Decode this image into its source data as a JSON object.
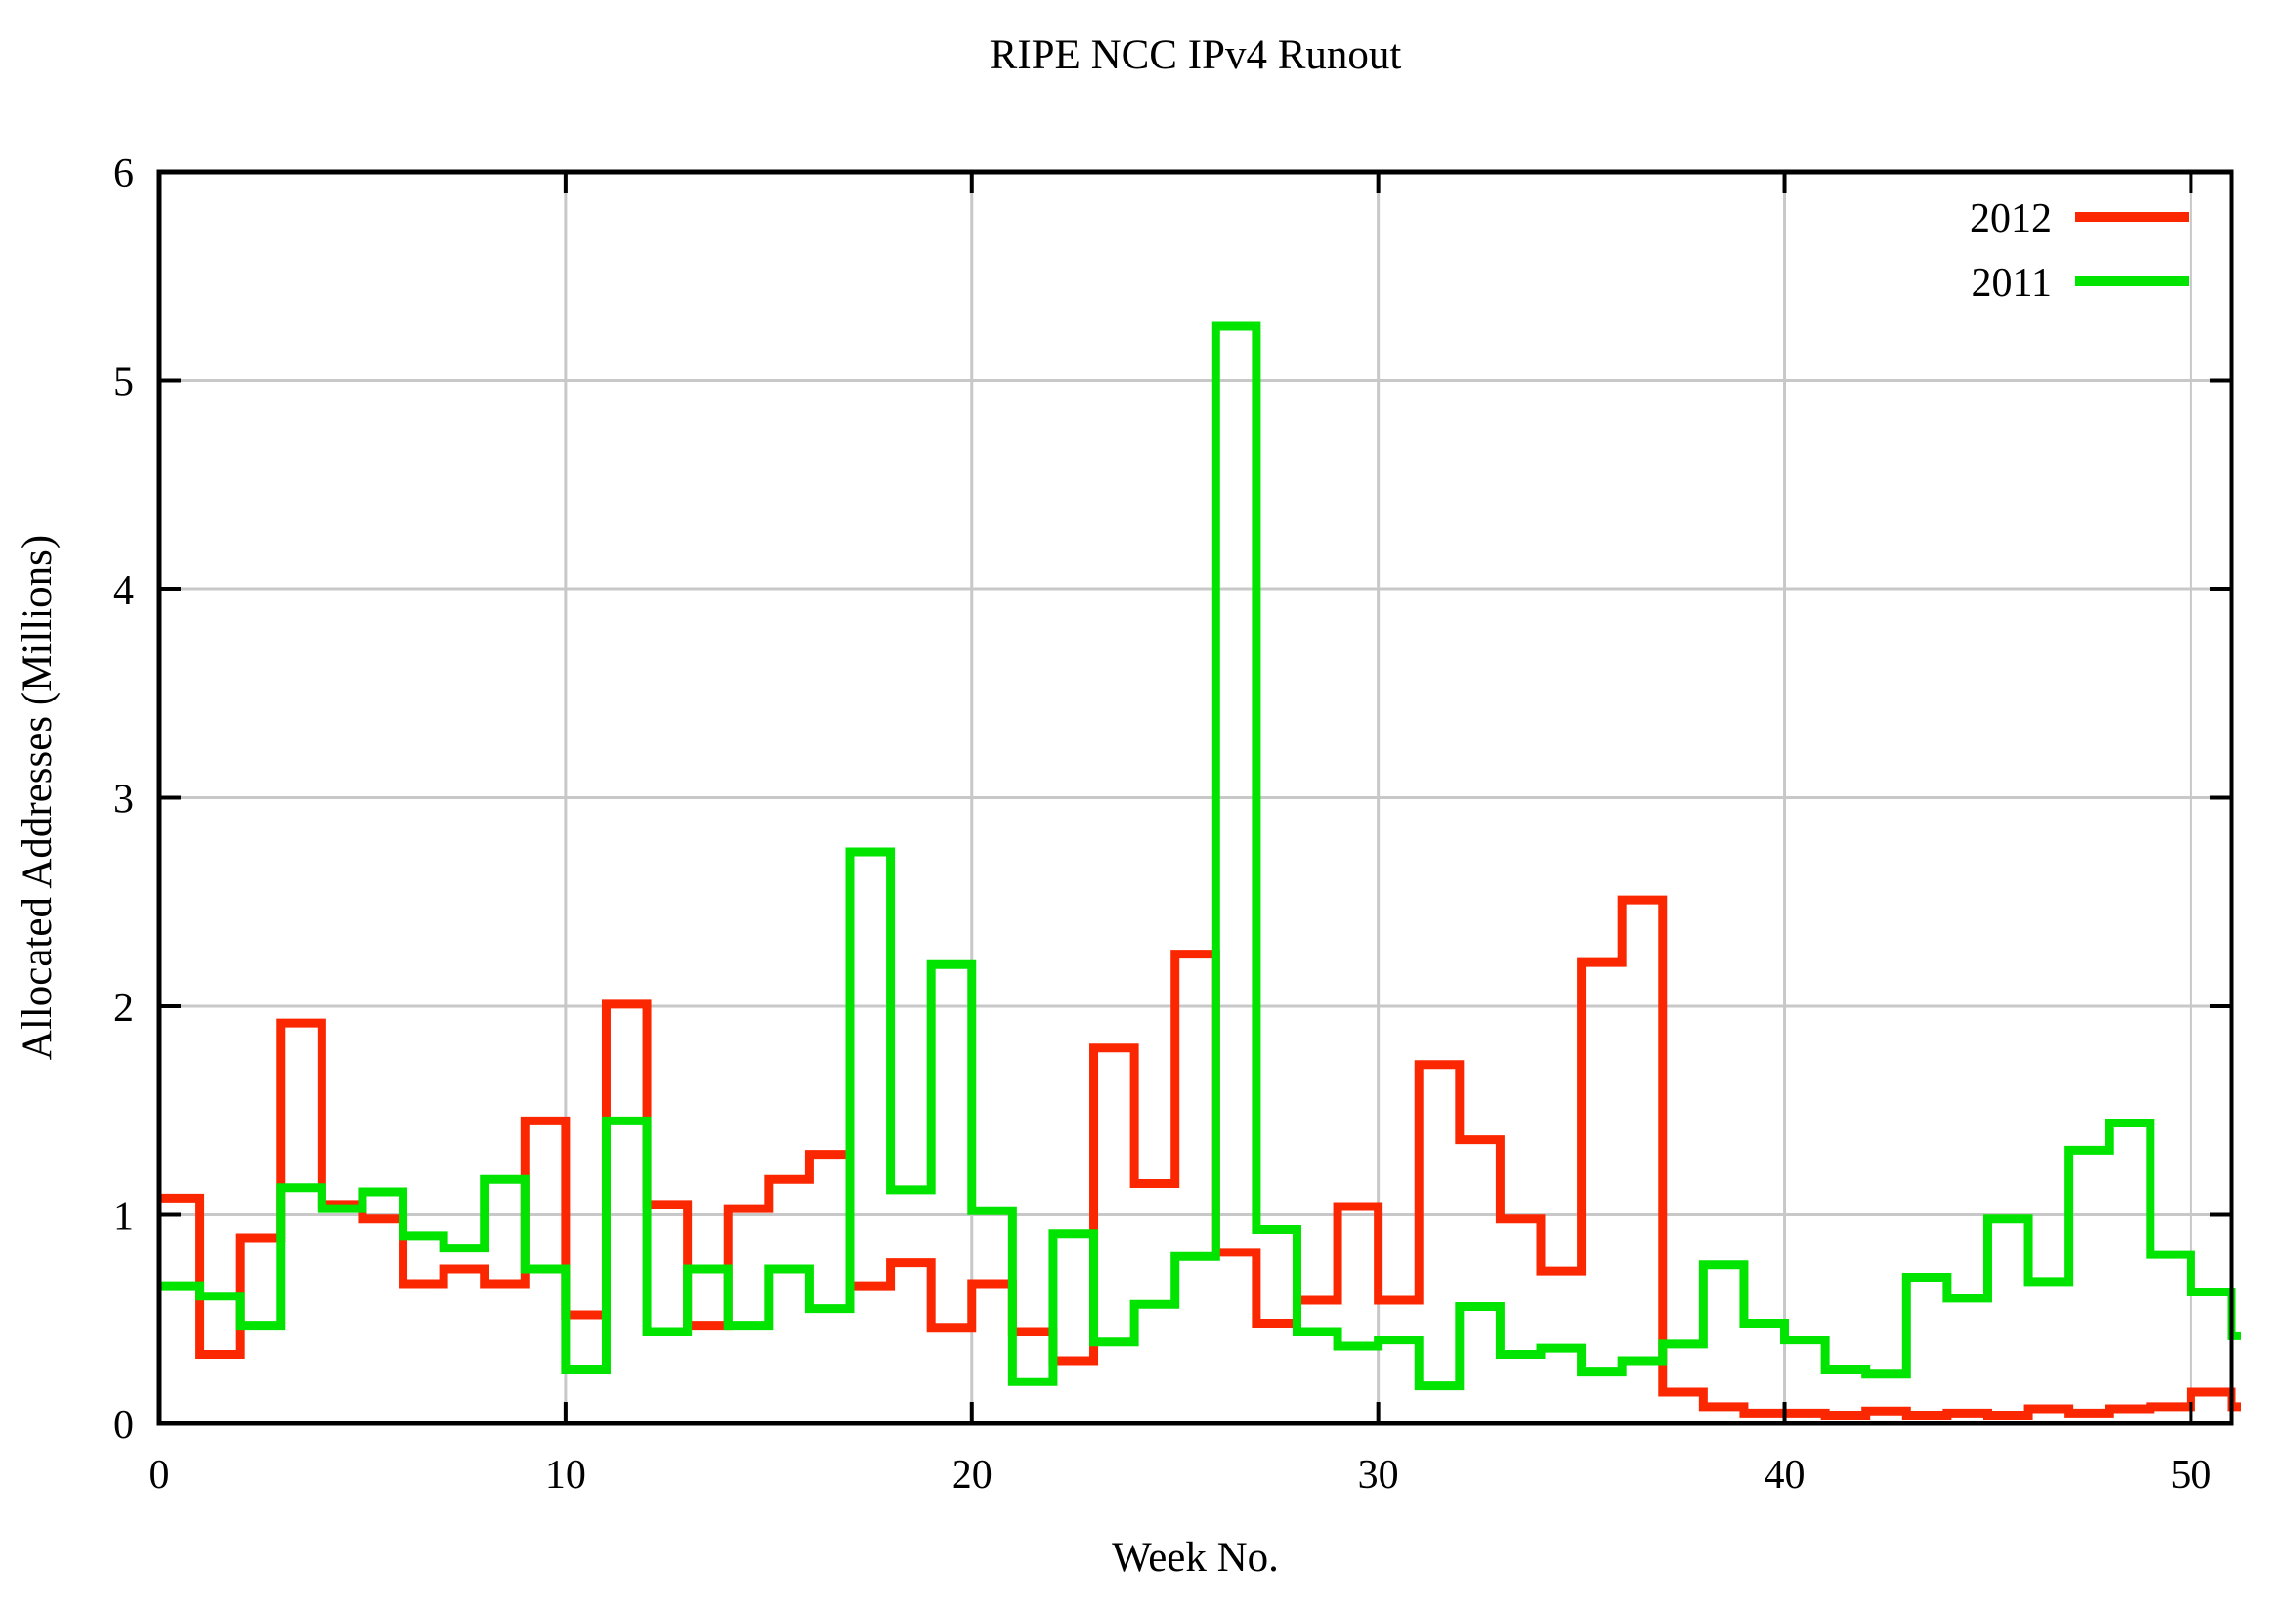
{
  "page": {
    "background": "#ffffff"
  },
  "chart_data": {
    "type": "line",
    "line_style": "steps",
    "title": "RIPE NCC IPv4 Runout",
    "xlabel": "Week No.",
    "ylabel": "Allocated Addresses (Millions)",
    "xlim": [
      0,
      51
    ],
    "ylim": [
      0,
      6
    ],
    "xticks": [
      0,
      10,
      20,
      30,
      40,
      50
    ],
    "yticks": [
      0,
      1,
      2,
      3,
      4,
      5,
      6
    ],
    "grid": true,
    "grid_color": "#c8c8c8",
    "border_color": "#000000",
    "legend_position": "top-right-inside",
    "draw_order": [
      "2012 first (below)",
      "2011 second (on top)"
    ],
    "x": [
      0,
      1,
      2,
      3,
      4,
      5,
      6,
      7,
      8,
      9,
      10,
      11,
      12,
      13,
      14,
      15,
      16,
      17,
      18,
      19,
      20,
      21,
      22,
      23,
      24,
      25,
      26,
      27,
      28,
      29,
      30,
      31,
      32,
      33,
      34,
      35,
      36,
      37,
      38,
      39,
      40,
      41,
      42,
      43,
      44,
      45,
      46,
      47,
      48,
      49,
      50,
      51
    ],
    "series": [
      {
        "name": "2012",
        "color": "#fb2700",
        "values": [
          1.08,
          0.33,
          0.89,
          1.92,
          1.05,
          0.98,
          0.67,
          0.74,
          0.67,
          1.45,
          0.52,
          2.01,
          1.05,
          0.47,
          1.03,
          1.17,
          1.29,
          0.66,
          0.77,
          0.46,
          0.67,
          0.44,
          0.3,
          1.8,
          1.15,
          2.25,
          0.82,
          0.48,
          0.59,
          1.04,
          0.59,
          1.72,
          1.36,
          0.98,
          0.73,
          2.21,
          2.51,
          0.15,
          0.08,
          0.05,
          0.05,
          0.04,
          0.06,
          0.04,
          0.05,
          0.04,
          0.07,
          0.05,
          0.07,
          0.08,
          0.15,
          0.08
        ]
      },
      {
        "name": "2011",
        "color": "#00e400",
        "values": [
          0.66,
          0.61,
          0.47,
          1.13,
          1.03,
          1.11,
          0.9,
          0.84,
          1.17,
          0.74,
          0.26,
          1.45,
          0.44,
          0.74,
          0.47,
          0.74,
          0.55,
          2.74,
          1.12,
          2.2,
          1.02,
          0.2,
          0.91,
          0.39,
          0.57,
          0.8,
          5.26,
          0.93,
          0.44,
          0.37,
          0.4,
          0.18,
          0.56,
          0.33,
          0.36,
          0.25,
          0.3,
          0.38,
          0.76,
          0.48,
          0.4,
          0.26,
          0.24,
          0.7,
          0.6,
          0.98,
          0.68,
          1.31,
          1.44,
          0.81,
          0.63,
          0.42
        ]
      }
    ]
  }
}
